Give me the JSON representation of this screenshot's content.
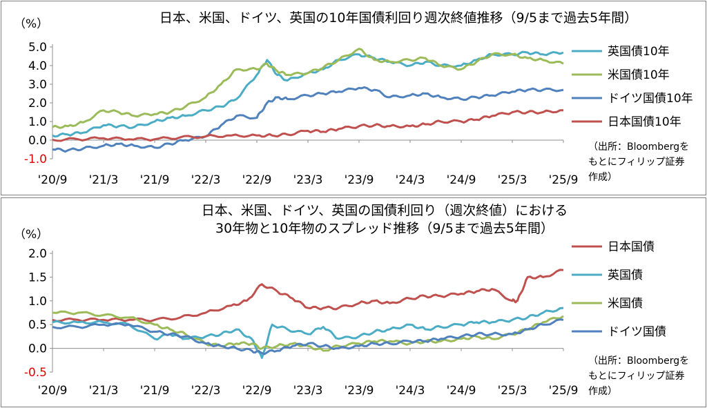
{
  "panels": [
    {
      "id": "top",
      "title": "日本、米国、ドイツ、英国の10年国債利回り週次終値推移（9/5まで過去5年間）",
      "unit": "（%）",
      "source": [
        "（出所：Bloombergを",
        "もとにフィリップ証券",
        "作成）"
      ]
    },
    {
      "id": "bottom",
      "title_lines": [
        "日本、米国、ドイツ、英国の国債利回り（週次終値）における",
        "30年物と10年物のスプレッド推移（9/5まで過去5年間）"
      ],
      "unit": "（%）",
      "source": [
        "（出所：Bloombergを",
        "もとにフィリップ証券",
        "作成）"
      ]
    }
  ],
  "chart_data": [
    {
      "type": "line",
      "title": "日本、米国、ドイツ、英国の10年国債利回り週次終値推移（9/5まで過去5年間）",
      "ylabel": "（%）",
      "ylim": [
        -1.0,
        5.0
      ],
      "yticks": [
        "5.0",
        "4.0",
        "3.0",
        "2.0",
        "1.0",
        "0.0",
        "-1.0"
      ],
      "ytick_values": [
        5.0,
        4.0,
        3.0,
        2.0,
        1.0,
        0.0,
        -1.0
      ],
      "x_categories": [
        "'20/9",
        "'21/3",
        "'21/9",
        "'22/3",
        "'22/9",
        "'23/3",
        "'23/9",
        "'24/3",
        "'24/9",
        "'25/3",
        "'25/9"
      ],
      "grid": false,
      "legend_position": "right",
      "negative_tick_color": "#e00000",
      "series": [
        {
          "name": "英国債10年",
          "color": "#4bacc6",
          "points": [
            [
              0,
              0.25
            ],
            [
              0.3,
              0.3
            ],
            [
              0.6,
              0.4
            ],
            [
              1,
              0.8
            ],
            [
              1.3,
              0.75
            ],
            [
              1.6,
              0.7
            ],
            [
              2,
              1.0
            ],
            [
              2.3,
              1.2
            ],
            [
              2.6,
              1.3
            ],
            [
              3,
              1.6
            ],
            [
              3.3,
              1.8
            ],
            [
              3.6,
              2.2
            ],
            [
              4,
              3.5
            ],
            [
              4.2,
              4.3
            ],
            [
              4.4,
              3.5
            ],
            [
              4.6,
              3.2
            ],
            [
              5,
              3.6
            ],
            [
              5.3,
              3.8
            ],
            [
              5.6,
              4.3
            ],
            [
              6,
              4.6
            ],
            [
              6.3,
              4.4
            ],
            [
              6.6,
              4.2
            ],
            [
              7,
              4.0
            ],
            [
              7.3,
              4.2
            ],
            [
              7.6,
              4.0
            ],
            [
              8,
              4.0
            ],
            [
              8.3,
              4.3
            ],
            [
              8.6,
              4.6
            ],
            [
              9,
              4.6
            ],
            [
              9.3,
              4.7
            ],
            [
              9.6,
              4.6
            ],
            [
              10,
              4.7
            ]
          ]
        },
        {
          "name": "米国債10年",
          "color": "#9bbb59",
          "points": [
            [
              0,
              0.7
            ],
            [
              0.3,
              0.75
            ],
            [
              0.6,
              0.95
            ],
            [
              1,
              1.6
            ],
            [
              1.3,
              1.5
            ],
            [
              1.6,
              1.3
            ],
            [
              2,
              1.4
            ],
            [
              2.3,
              1.5
            ],
            [
              2.6,
              1.8
            ],
            [
              3,
              2.3
            ],
            [
              3.3,
              3.0
            ],
            [
              3.6,
              3.8
            ],
            [
              4,
              3.8
            ],
            [
              4.2,
              4.1
            ],
            [
              4.4,
              3.7
            ],
            [
              4.6,
              3.5
            ],
            [
              5,
              3.6
            ],
            [
              5.3,
              3.9
            ],
            [
              5.6,
              4.3
            ],
            [
              6,
              4.9
            ],
            [
              6.3,
              4.3
            ],
            [
              6.6,
              4.2
            ],
            [
              7,
              4.3
            ],
            [
              7.3,
              4.4
            ],
            [
              7.6,
              4.0
            ],
            [
              8,
              3.8
            ],
            [
              8.3,
              4.2
            ],
            [
              8.6,
              4.6
            ],
            [
              9,
              4.6
            ],
            [
              9.3,
              4.4
            ],
            [
              9.6,
              4.3
            ],
            [
              10,
              4.1
            ]
          ]
        },
        {
          "name": "ドイツ国債10年",
          "color": "#4f81bd",
          "points": [
            [
              0,
              -0.5
            ],
            [
              0.3,
              -0.55
            ],
            [
              0.6,
              -0.45
            ],
            [
              1,
              -0.3
            ],
            [
              1.3,
              -0.2
            ],
            [
              1.6,
              -0.3
            ],
            [
              2,
              -0.4
            ],
            [
              2.3,
              -0.2
            ],
            [
              2.6,
              0.0
            ],
            [
              3,
              0.2
            ],
            [
              3.3,
              0.8
            ],
            [
              3.6,
              1.3
            ],
            [
              4,
              1.2
            ],
            [
              4.2,
              2.0
            ],
            [
              4.4,
              2.3
            ],
            [
              4.6,
              2.2
            ],
            [
              5,
              2.4
            ],
            [
              5.3,
              2.5
            ],
            [
              5.6,
              2.6
            ],
            [
              6,
              2.8
            ],
            [
              6.3,
              2.7
            ],
            [
              6.6,
              2.3
            ],
            [
              7,
              2.4
            ],
            [
              7.3,
              2.5
            ],
            [
              7.6,
              2.3
            ],
            [
              8,
              2.2
            ],
            [
              8.3,
              2.3
            ],
            [
              8.6,
              2.4
            ],
            [
              9,
              2.6
            ],
            [
              9.3,
              2.7
            ],
            [
              9.6,
              2.7
            ],
            [
              10,
              2.7
            ]
          ]
        },
        {
          "name": "日本国債10年",
          "color": "#c0504d",
          "points": [
            [
              0,
              0.02
            ],
            [
              0.5,
              0.05
            ],
            [
              1,
              0.1
            ],
            [
              1.5,
              0.05
            ],
            [
              2,
              0.05
            ],
            [
              2.5,
              0.15
            ],
            [
              3,
              0.2
            ],
            [
              3.5,
              0.25
            ],
            [
              4,
              0.25
            ],
            [
              4.3,
              0.25
            ],
            [
              4.6,
              0.3
            ],
            [
              5,
              0.5
            ],
            [
              5.3,
              0.45
            ],
            [
              5.6,
              0.6
            ],
            [
              6,
              0.75
            ],
            [
              6.3,
              0.8
            ],
            [
              6.6,
              0.75
            ],
            [
              7,
              0.75
            ],
            [
              7.3,
              0.85
            ],
            [
              7.6,
              1.0
            ],
            [
              8,
              1.0
            ],
            [
              8.3,
              1.1
            ],
            [
              8.6,
              1.3
            ],
            [
              9,
              1.5
            ],
            [
              9.3,
              1.5
            ],
            [
              9.6,
              1.5
            ],
            [
              10,
              1.6
            ]
          ]
        }
      ]
    },
    {
      "type": "line",
      "title": "日本、米国、ドイツ、英国の国債利回り（週次終値）における30年物と10年物のスプレッド推移（9/5まで過去5年間）",
      "ylabel": "（%）",
      "ylim": [
        -0.5,
        2.0
      ],
      "yticks": [
        "2.0",
        "1.5",
        "1.0",
        "0.5",
        "0.0",
        "-0.5"
      ],
      "ytick_values": [
        2.0,
        1.5,
        1.0,
        0.5,
        0.0,
        -0.5
      ],
      "x_categories": [
        "'20/9",
        "'21/3",
        "'21/9",
        "'22/3",
        "'22/9",
        "'23/3",
        "'23/9",
        "'24/3",
        "'24/9",
        "'25/3",
        "'25/9"
      ],
      "grid": false,
      "legend_position": "right",
      "negative_tick_color": "#e00000",
      "series": [
        {
          "name": "日本国債",
          "color": "#c0504d",
          "points": [
            [
              0,
              0.6
            ],
            [
              0.5,
              0.6
            ],
            [
              1,
              0.6
            ],
            [
              1.5,
              0.6
            ],
            [
              2,
              0.6
            ],
            [
              2.5,
              0.65
            ],
            [
              3,
              0.75
            ],
            [
              3.5,
              0.9
            ],
            [
              3.8,
              1.0
            ],
            [
              4.1,
              1.35
            ],
            [
              4.4,
              1.2
            ],
            [
              4.7,
              1.05
            ],
            [
              5,
              0.85
            ],
            [
              5.3,
              0.85
            ],
            [
              5.6,
              0.85
            ],
            [
              6,
              0.95
            ],
            [
              6.3,
              1.0
            ],
            [
              6.6,
              0.95
            ],
            [
              7,
              1.05
            ],
            [
              7.3,
              1.1
            ],
            [
              7.6,
              1.1
            ],
            [
              8,
              1.15
            ],
            [
              8.3,
              1.2
            ],
            [
              8.6,
              1.25
            ],
            [
              9,
              1.0
            ],
            [
              9.1,
              1.0
            ],
            [
              9.3,
              1.5
            ],
            [
              9.6,
              1.5
            ],
            [
              10,
              1.65
            ]
          ]
        },
        {
          "name": "英国債",
          "color": "#4bacc6",
          "points": [
            [
              0,
              0.55
            ],
            [
              0.5,
              0.55
            ],
            [
              1,
              0.55
            ],
            [
              1.5,
              0.5
            ],
            [
              2,
              0.2
            ],
            [
              2.3,
              0.3
            ],
            [
              2.6,
              0.2
            ],
            [
              3,
              0.25
            ],
            [
              3.3,
              0.3
            ],
            [
              3.6,
              0.4
            ],
            [
              3.9,
              0.2
            ],
            [
              4.1,
              -0.2
            ],
            [
              4.3,
              0.5
            ],
            [
              4.6,
              0.4
            ],
            [
              5,
              0.3
            ],
            [
              5.3,
              0.45
            ],
            [
              5.6,
              0.2
            ],
            [
              6,
              0.25
            ],
            [
              6.3,
              0.35
            ],
            [
              6.6,
              0.4
            ],
            [
              7,
              0.5
            ],
            [
              7.3,
              0.4
            ],
            [
              7.6,
              0.45
            ],
            [
              8,
              0.5
            ],
            [
              8.3,
              0.55
            ],
            [
              8.6,
              0.55
            ],
            [
              9,
              0.6
            ],
            [
              9.3,
              0.65
            ],
            [
              9.6,
              0.75
            ],
            [
              10,
              0.85
            ]
          ]
        },
        {
          "name": "米国債",
          "color": "#9bbb59",
          "points": [
            [
              0,
              0.75
            ],
            [
              0.5,
              0.75
            ],
            [
              1,
              0.7
            ],
            [
              1.5,
              0.65
            ],
            [
              2,
              0.5
            ],
            [
              2.3,
              0.4
            ],
            [
              2.6,
              0.3
            ],
            [
              3,
              0.1
            ],
            [
              3.3,
              0.05
            ],
            [
              3.6,
              0.1
            ],
            [
              3.9,
              0.1
            ],
            [
              4.1,
              0.0
            ],
            [
              4.4,
              0.05
            ],
            [
              4.7,
              0.1
            ],
            [
              5,
              0.05
            ],
            [
              5.3,
              -0.05
            ],
            [
              5.6,
              0.05
            ],
            [
              6,
              0.1
            ],
            [
              6.3,
              0.15
            ],
            [
              6.6,
              0.15
            ],
            [
              7,
              0.1
            ],
            [
              7.3,
              0.15
            ],
            [
              7.6,
              0.15
            ],
            [
              8,
              0.2
            ],
            [
              8.3,
              0.25
            ],
            [
              8.6,
              0.2
            ],
            [
              9,
              0.3
            ],
            [
              9.3,
              0.4
            ],
            [
              9.6,
              0.55
            ],
            [
              10,
              0.68
            ]
          ]
        },
        {
          "name": "ドイツ国債",
          "color": "#4f81bd",
          "points": [
            [
              0,
              0.45
            ],
            [
              0.5,
              0.45
            ],
            [
              1,
              0.5
            ],
            [
              1.5,
              0.5
            ],
            [
              2,
              0.35
            ],
            [
              2.3,
              0.3
            ],
            [
              2.6,
              0.25
            ],
            [
              3,
              0.1
            ],
            [
              3.3,
              0.05
            ],
            [
              3.6,
              0.0
            ],
            [
              3.9,
              -0.05
            ],
            [
              4.1,
              -0.1
            ],
            [
              4.4,
              -0.05
            ],
            [
              4.7,
              0.05
            ],
            [
              5,
              0.1
            ],
            [
              5.3,
              0.05
            ],
            [
              5.6,
              0.0
            ],
            [
              6,
              0.05
            ],
            [
              6.3,
              0.1
            ],
            [
              6.6,
              0.1
            ],
            [
              7,
              0.15
            ],
            [
              7.3,
              0.15
            ],
            [
              7.6,
              0.2
            ],
            [
              8,
              0.25
            ],
            [
              8.3,
              0.3
            ],
            [
              8.6,
              0.3
            ],
            [
              9,
              0.3
            ],
            [
              9.3,
              0.4
            ],
            [
              9.6,
              0.5
            ],
            [
              10,
              0.6
            ]
          ]
        }
      ]
    }
  ]
}
